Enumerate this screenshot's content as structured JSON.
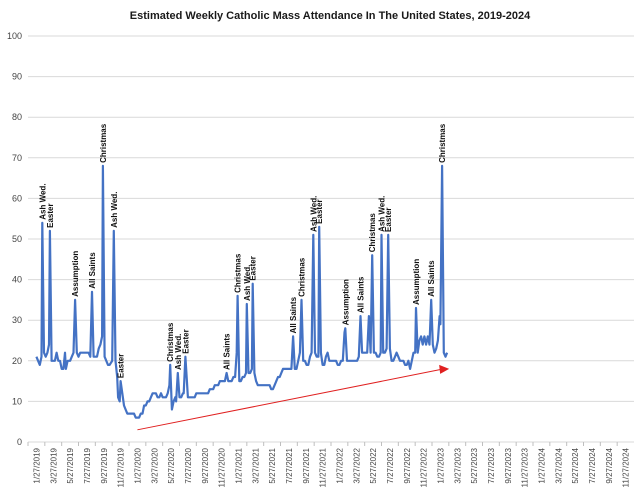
{
  "chart_data": {
    "type": "line",
    "title": "Estimated Weekly Catholic Mass Attendance In The United States, 2019-2024",
    "xlabel": "",
    "ylabel": "",
    "ylim": [
      0,
      100
    ],
    "yticks": [
      0,
      10,
      20,
      30,
      40,
      50,
      60,
      70,
      80,
      90,
      100
    ],
    "grid": true,
    "line_color": "#4472C4",
    "trend_color": "#e02020",
    "x_tick_labels": [
      "1/27/2019",
      "3/27/2019",
      "5/27/2019",
      "7/27/2019",
      "9/27/2019",
      "11/27/2019",
      "1/27/2020",
      "3/27/2020",
      "5/27/2020",
      "7/27/2020",
      "9/27/2020",
      "11/27/2020",
      "1/27/2021",
      "3/27/2021",
      "5/27/2021",
      "7/27/2021",
      "9/27/2021",
      "11/27/2021",
      "1/27/2022",
      "3/27/2022",
      "5/27/2022",
      "7/27/2022",
      "9/27/2022",
      "11/27/2022",
      "1/27/2023",
      "3/27/2023",
      "5/27/2023",
      "7/27/2023",
      "9/27/2023",
      "11/27/2023",
      "1/27/2024",
      "3/27/2024",
      "5/27/2024",
      "7/27/2024",
      "9/27/2024",
      "11/27/2024"
    ],
    "series": [
      {
        "values": [
          [
            0.0,
            21
          ],
          [
            0.1,
            20
          ],
          [
            0.2,
            19
          ],
          [
            0.3,
            21
          ],
          [
            0.35,
            54
          ],
          [
            0.45,
            22
          ],
          [
            0.55,
            21
          ],
          [
            0.65,
            22
          ],
          [
            0.75,
            24
          ],
          [
            0.8,
            52
          ],
          [
            0.9,
            20
          ],
          [
            1.0,
            20
          ],
          [
            1.1,
            20
          ],
          [
            1.2,
            22
          ],
          [
            1.3,
            20
          ],
          [
            1.4,
            20
          ],
          [
            1.5,
            18
          ],
          [
            1.6,
            18
          ],
          [
            1.7,
            22
          ],
          [
            1.75,
            18
          ],
          [
            1.85,
            20
          ],
          [
            2.0,
            20
          ],
          [
            2.1,
            21
          ],
          [
            2.2,
            22
          ],
          [
            2.3,
            35
          ],
          [
            2.4,
            22
          ],
          [
            2.5,
            21
          ],
          [
            2.6,
            22
          ],
          [
            2.7,
            22
          ],
          [
            2.8,
            22
          ],
          [
            2.9,
            22
          ],
          [
            3.0,
            22
          ],
          [
            3.1,
            22
          ],
          [
            3.2,
            21
          ],
          [
            3.3,
            37
          ],
          [
            3.4,
            21
          ],
          [
            3.5,
            21
          ],
          [
            3.6,
            21
          ],
          [
            3.7,
            23
          ],
          [
            3.8,
            24
          ],
          [
            3.9,
            26
          ],
          [
            3.95,
            68
          ],
          [
            4.05,
            21
          ],
          [
            4.15,
            20
          ],
          [
            4.25,
            19
          ],
          [
            4.35,
            19
          ],
          [
            4.5,
            20
          ],
          [
            4.6,
            52
          ],
          [
            4.7,
            20
          ],
          [
            4.8,
            16
          ],
          [
            4.85,
            11
          ],
          [
            4.95,
            10
          ],
          [
            5.0,
            15
          ],
          [
            5.1,
            12
          ],
          [
            5.2,
            9
          ],
          [
            5.3,
            8
          ],
          [
            5.4,
            7
          ],
          [
            5.5,
            7
          ],
          [
            5.6,
            7
          ],
          [
            5.7,
            7
          ],
          [
            5.8,
            7
          ],
          [
            5.9,
            6
          ],
          [
            6.0,
            6
          ],
          [
            6.1,
            6
          ],
          [
            6.2,
            7
          ],
          [
            6.3,
            7
          ],
          [
            6.4,
            9
          ],
          [
            6.5,
            9
          ],
          [
            6.6,
            10
          ],
          [
            6.7,
            10
          ],
          [
            6.8,
            11
          ],
          [
            6.9,
            12
          ],
          [
            7.0,
            12
          ],
          [
            7.1,
            12
          ],
          [
            7.2,
            11
          ],
          [
            7.3,
            11
          ],
          [
            7.4,
            12
          ],
          [
            7.5,
            11
          ],
          [
            7.6,
            11
          ],
          [
            7.7,
            11
          ],
          [
            7.8,
            12
          ],
          [
            7.9,
            14
          ],
          [
            7.95,
            19
          ],
          [
            8.05,
            8
          ],
          [
            8.15,
            10
          ],
          [
            8.25,
            11
          ],
          [
            8.3,
            10
          ],
          [
            8.4,
            17
          ],
          [
            8.5,
            11
          ],
          [
            8.6,
            11
          ],
          [
            8.7,
            12
          ],
          [
            8.75,
            12
          ],
          [
            8.85,
            21
          ],
          [
            9.0,
            11
          ],
          [
            9.1,
            11
          ],
          [
            9.2,
            11
          ],
          [
            9.3,
            11
          ],
          [
            9.4,
            11
          ],
          [
            9.5,
            12
          ],
          [
            9.6,
            12
          ],
          [
            9.7,
            12
          ],
          [
            9.8,
            12
          ],
          [
            9.9,
            12
          ],
          [
            10.0,
            12
          ],
          [
            10.1,
            12
          ],
          [
            10.2,
            12
          ],
          [
            10.3,
            13
          ],
          [
            10.4,
            13
          ],
          [
            10.5,
            13
          ],
          [
            10.6,
            14
          ],
          [
            10.7,
            14
          ],
          [
            10.8,
            14
          ],
          [
            10.9,
            15
          ],
          [
            11.0,
            15
          ],
          [
            11.1,
            15
          ],
          [
            11.2,
            15
          ],
          [
            11.3,
            17
          ],
          [
            11.4,
            15
          ],
          [
            11.5,
            15
          ],
          [
            11.6,
            15
          ],
          [
            11.7,
            16
          ],
          [
            11.8,
            16
          ],
          [
            11.9,
            22
          ],
          [
            11.95,
            36
          ],
          [
            12.05,
            15
          ],
          [
            12.15,
            15
          ],
          [
            12.25,
            16
          ],
          [
            12.35,
            16
          ],
          [
            12.45,
            17
          ],
          [
            12.5,
            34
          ],
          [
            12.6,
            17
          ],
          [
            12.7,
            17
          ],
          [
            12.8,
            18
          ],
          [
            12.85,
            39
          ],
          [
            12.95,
            17
          ],
          [
            13.05,
            15
          ],
          [
            13.15,
            14
          ],
          [
            13.25,
            14
          ],
          [
            13.35,
            14
          ],
          [
            13.45,
            14
          ],
          [
            13.55,
            14
          ],
          [
            13.65,
            14
          ],
          [
            13.75,
            14
          ],
          [
            13.85,
            14
          ],
          [
            13.95,
            13
          ],
          [
            14.05,
            13
          ],
          [
            14.15,
            14
          ],
          [
            14.25,
            15
          ],
          [
            14.35,
            16
          ],
          [
            14.45,
            16
          ],
          [
            14.55,
            17
          ],
          [
            14.65,
            18
          ],
          [
            14.75,
            18
          ],
          [
            14.85,
            18
          ],
          [
            14.95,
            18
          ],
          [
            15.05,
            18
          ],
          [
            15.15,
            18
          ],
          [
            15.25,
            26
          ],
          [
            15.35,
            18
          ],
          [
            15.45,
            18
          ],
          [
            15.55,
            20
          ],
          [
            15.65,
            22
          ],
          [
            15.75,
            35
          ],
          [
            15.85,
            20
          ],
          [
            15.95,
            20
          ],
          [
            16.05,
            19
          ],
          [
            16.15,
            19
          ],
          [
            16.25,
            21
          ],
          [
            16.35,
            22
          ],
          [
            16.45,
            51
          ],
          [
            16.55,
            22
          ],
          [
            16.65,
            21
          ],
          [
            16.75,
            21
          ],
          [
            16.8,
            53
          ],
          [
            16.9,
            22
          ],
          [
            17.0,
            19
          ],
          [
            17.1,
            19
          ],
          [
            17.2,
            21
          ],
          [
            17.3,
            22
          ],
          [
            17.4,
            20
          ],
          [
            17.5,
            20
          ],
          [
            17.6,
            20
          ],
          [
            17.7,
            20
          ],
          [
            17.8,
            20
          ],
          [
            17.9,
            19
          ],
          [
            18.0,
            19
          ],
          [
            18.1,
            20
          ],
          [
            18.2,
            20
          ],
          [
            18.3,
            27
          ],
          [
            18.35,
            28
          ],
          [
            18.45,
            20
          ],
          [
            18.55,
            20
          ],
          [
            18.65,
            20
          ],
          [
            18.75,
            20
          ],
          [
            18.85,
            20
          ],
          [
            18.95,
            20
          ],
          [
            19.05,
            20
          ],
          [
            19.15,
            21
          ],
          [
            19.25,
            31
          ],
          [
            19.35,
            22
          ],
          [
            19.45,
            22
          ],
          [
            19.55,
            22
          ],
          [
            19.65,
            22
          ],
          [
            19.75,
            31
          ],
          [
            19.85,
            22
          ],
          [
            19.95,
            46
          ],
          [
            20.05,
            22
          ],
          [
            20.15,
            22
          ],
          [
            20.25,
            21
          ],
          [
            20.35,
            21
          ],
          [
            20.45,
            22
          ],
          [
            20.5,
            51
          ],
          [
            20.6,
            22
          ],
          [
            20.7,
            22
          ],
          [
            20.8,
            23
          ],
          [
            20.9,
            51
          ],
          [
            21.0,
            23
          ],
          [
            21.1,
            20
          ],
          [
            21.2,
            20
          ],
          [
            21.3,
            21
          ],
          [
            21.4,
            22
          ],
          [
            21.5,
            21
          ],
          [
            21.6,
            20
          ],
          [
            21.7,
            20
          ],
          [
            21.8,
            20
          ],
          [
            21.9,
            19
          ],
          [
            22.0,
            19
          ],
          [
            22.1,
            20
          ],
          [
            22.2,
            18
          ],
          [
            22.3,
            20
          ],
          [
            22.4,
            22
          ],
          [
            22.5,
            22
          ],
          [
            22.55,
            33
          ],
          [
            22.65,
            22
          ],
          [
            22.75,
            25
          ],
          [
            22.85,
            26
          ],
          [
            22.95,
            24
          ],
          [
            23.05,
            26
          ],
          [
            23.15,
            24
          ],
          [
            23.25,
            26
          ],
          [
            23.35,
            24
          ],
          [
            23.45,
            35
          ],
          [
            23.55,
            24
          ],
          [
            23.65,
            22
          ],
          [
            23.75,
            23
          ],
          [
            23.85,
            25
          ],
          [
            23.95,
            31
          ],
          [
            24.0,
            29
          ],
          [
            24.1,
            68
          ],
          [
            24.2,
            22
          ],
          [
            24.3,
            21
          ],
          [
            24.4,
            22
          ]
        ]
      }
    ],
    "trend": {
      "start": [
        6.0,
        3
      ],
      "end": [
        24.4,
        18
      ]
    },
    "annotations": [
      {
        "x": 0.35,
        "y": 54,
        "label": "Ash Wed."
      },
      {
        "x": 0.8,
        "y": 52,
        "label": "Easter"
      },
      {
        "x": 2.3,
        "y": 35,
        "label": "Assumption"
      },
      {
        "x": 3.3,
        "y": 37,
        "label": "All Saints"
      },
      {
        "x": 3.95,
        "y": 68,
        "label": "Christmas"
      },
      {
        "x": 4.6,
        "y": 52,
        "label": "Ash Wed."
      },
      {
        "x": 5.0,
        "y": 15,
        "label": "Easter"
      },
      {
        "x": 7.95,
        "y": 19,
        "label": "Christmas"
      },
      {
        "x": 8.4,
        "y": 17,
        "label": "Ash Wed."
      },
      {
        "x": 8.85,
        "y": 21,
        "label": "Easter"
      },
      {
        "x": 11.3,
        "y": 17,
        "label": "All Saints"
      },
      {
        "x": 11.95,
        "y": 36,
        "label": "Christmas"
      },
      {
        "x": 12.5,
        "y": 34,
        "label": "Ash Wed."
      },
      {
        "x": 12.85,
        "y": 39,
        "label": "Easter"
      },
      {
        "x": 15.25,
        "y": 26,
        "label": "All Saints"
      },
      {
        "x": 15.75,
        "y": 35,
        "label": "Christmas"
      },
      {
        "x": 16.45,
        "y": 51,
        "label": "Ash Wed."
      },
      {
        "x": 16.8,
        "y": 53,
        "label": "Easter"
      },
      {
        "x": 18.35,
        "y": 28,
        "label": "Assumption"
      },
      {
        "x": 19.25,
        "y": 31,
        "label": "All Saints"
      },
      {
        "x": 19.95,
        "y": 46,
        "label": "Christmas"
      },
      {
        "x": 20.5,
        "y": 51,
        "label": "Ash Wed."
      },
      {
        "x": 20.9,
        "y": 51,
        "label": "Easter"
      },
      {
        "x": 22.55,
        "y": 33,
        "label": "Assumption"
      },
      {
        "x": 23.45,
        "y": 35,
        "label": "All Saints"
      },
      {
        "x": 24.1,
        "y": 68,
        "label": "Christmas"
      }
    ]
  }
}
